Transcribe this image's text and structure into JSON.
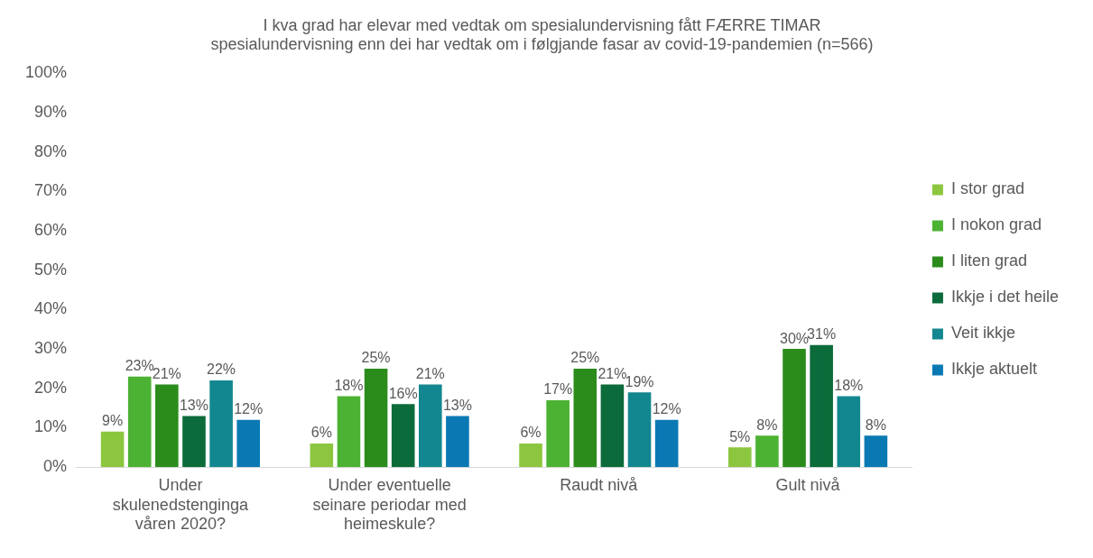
{
  "chart_data": {
    "type": "bar",
    "title": "I kva grad har elevar med vedtak om spesialundervisning fått FÆRRE TIMAR spesialundervisning enn dei har vedtak om i følgjande fasar av covid-19-pandemien (n=566)",
    "categories": [
      "Under skulenedstenginga våren 2020?",
      "Under eventuelle seinare periodar med heimeskule?",
      "Raudt nivå",
      "Gult nivå"
    ],
    "series": [
      {
        "name": "I stor grad",
        "color": "#8cc63f",
        "values": [
          9,
          6,
          6,
          5
        ],
        "value_labels": [
          "9%",
          "6%",
          "6%",
          "5%"
        ]
      },
      {
        "name": "I nokon grad",
        "color": "#4cb233",
        "values": [
          23,
          18,
          17,
          8
        ],
        "value_labels": [
          "23%",
          "18%",
          "17%",
          "8%"
        ]
      },
      {
        "name": "I liten grad",
        "color": "#2b8c1c",
        "values": [
          21,
          25,
          25,
          30
        ],
        "value_labels": [
          "21%",
          "25%",
          "25%",
          "30%"
        ]
      },
      {
        "name": "Ikkje i det heile",
        "color": "#0c6b3a",
        "values": [
          13,
          16,
          21,
          31
        ],
        "value_labels": [
          "13%",
          "16%",
          "21%",
          "31%"
        ]
      },
      {
        "name": "Veit ikkje",
        "color": "#13878f",
        "values": [
          22,
          21,
          19,
          18
        ],
        "value_labels": [
          "22%",
          "21%",
          "19%",
          "18%"
        ]
      },
      {
        "name": "Ikkje aktuelt",
        "color": "#0a79b3",
        "values": [
          12,
          13,
          12,
          8
        ],
        "value_labels": [
          "12%",
          "13%",
          "12%",
          "8%"
        ]
      }
    ],
    "ylim": [
      0,
      100
    ],
    "yticks": [
      {
        "value": 0,
        "label": "0%"
      },
      {
        "value": 10,
        "label": "10%"
      },
      {
        "value": 20,
        "label": "20%"
      },
      {
        "value": 30,
        "label": "30%"
      },
      {
        "value": 40,
        "label": "40%"
      },
      {
        "value": 50,
        "label": "50%"
      },
      {
        "value": 60,
        "label": "60%"
      },
      {
        "value": 70,
        "label": "70%"
      },
      {
        "value": 80,
        "label": "80%"
      },
      {
        "value": 90,
        "label": "90%"
      },
      {
        "value": 100,
        "label": "100%"
      }
    ],
    "grid": false,
    "legend": "right"
  }
}
